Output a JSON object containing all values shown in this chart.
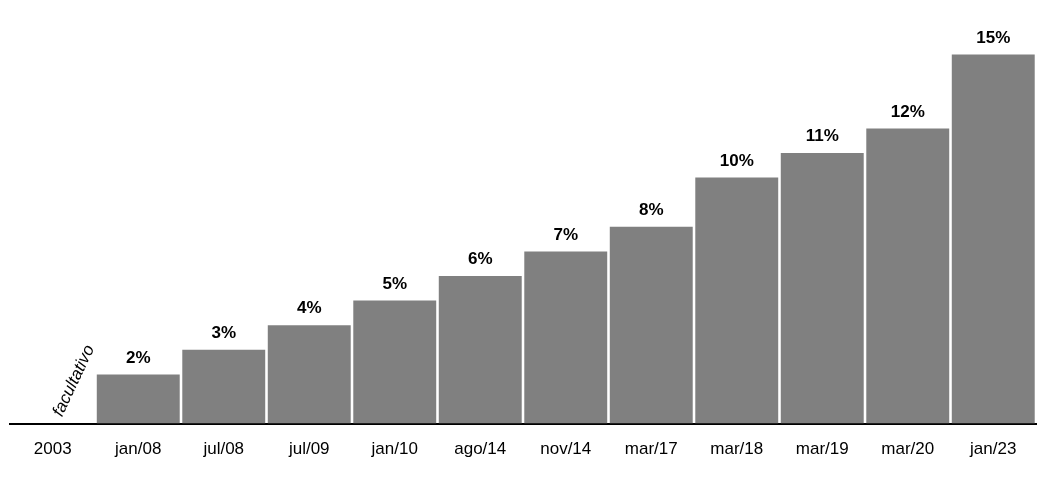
{
  "chart_data": {
    "type": "bar",
    "categories": [
      "2003",
      "jan/08",
      "jul/08",
      "jul/09",
      "jan/10",
      "ago/14",
      "nov/14",
      "mar/17",
      "mar/18",
      "mar/19",
      "mar/20",
      "jan/23"
    ],
    "values": [
      null,
      2,
      3,
      4,
      5,
      6,
      7,
      8,
      10,
      11,
      12,
      15
    ],
    "value_labels": [
      null,
      "2%",
      "3%",
      "4%",
      "5%",
      "6%",
      "7%",
      "8%",
      "10%",
      "11%",
      "12%",
      "15%"
    ],
    "color": "#808080",
    "tick_labels": "x",
    "grid": false,
    "legend": false,
    "annotations": [
      "facultativo"
    ]
  }
}
